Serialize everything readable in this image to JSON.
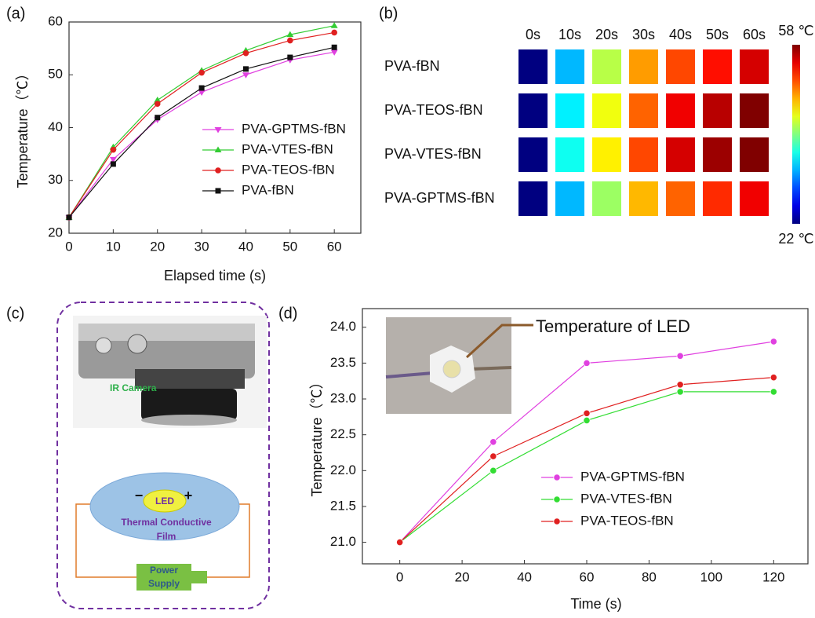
{
  "chart_data": [
    {
      "type": "line",
      "label": "(a)",
      "xlabel": "Elapsed time (s)",
      "ylabel": "Temperature（℃）",
      "x": [
        0,
        10,
        20,
        30,
        40,
        50,
        60
      ],
      "xlim": [
        0,
        66
      ],
      "xticks": [
        0,
        10,
        20,
        30,
        40,
        50,
        60
      ],
      "ylim": [
        20,
        60
      ],
      "yticks": [
        20,
        30,
        40,
        50,
        60
      ],
      "series": [
        {
          "name": "PVA-GPTMS-fBN",
          "color": "#e040e0",
          "marker": "triangle-down",
          "values": [
            23,
            34,
            41.5,
            46.7,
            50,
            52.8,
            54.3
          ]
        },
        {
          "name": "PVA-VTES-fBN",
          "color": "#33cc33",
          "marker": "triangle-up",
          "values": [
            23,
            36.3,
            45.2,
            50.8,
            54.6,
            57.6,
            59.3
          ]
        },
        {
          "name": "PVA-TEOS-fBN",
          "color": "#e02020",
          "marker": "circle",
          "values": [
            23,
            35.8,
            44.5,
            50.4,
            54.1,
            56.5,
            58
          ]
        },
        {
          "name": "PVA-fBN",
          "color": "#111111",
          "marker": "square",
          "values": [
            23,
            33.1,
            41.9,
            47.5,
            51.1,
            53.3,
            55.2
          ]
        }
      ]
    },
    {
      "type": "heatmap",
      "label": "(b)",
      "categories": [
        "0s",
        "10s",
        "20s",
        "30s",
        "40s",
        "50s",
        "60s"
      ],
      "rows": [
        "PVA-fBN",
        "PVA-TEOS-fBN",
        "PVA-VTES-fBN",
        "PVA-GPTMS-fBN"
      ],
      "values": [
        [
          22,
          33,
          42,
          48,
          51,
          53,
          55
        ],
        [
          22,
          35,
          44,
          50,
          54,
          56,
          58
        ],
        [
          22,
          36,
          45,
          51,
          55,
          57,
          58
        ],
        [
          22,
          33,
          41,
          47,
          50,
          52,
          54
        ]
      ],
      "zlim": [
        22,
        58
      ],
      "zticks": [
        {
          "value": 58,
          "label": "58 ℃"
        },
        {
          "value": 22,
          "label": "22 ℃"
        }
      ],
      "colormap": "jet"
    },
    {
      "type": "line",
      "label": "(d)",
      "xlabel": "Time (s)",
      "ylabel": "Temperature（℃）",
      "annotation": "Temperature of LED",
      "x": [
        0,
        30,
        60,
        90,
        120
      ],
      "xlim": [
        -12,
        131
      ],
      "xticks": [
        0,
        20,
        40,
        60,
        80,
        100,
        120
      ],
      "ylim": [
        20.7,
        24.26
      ],
      "yticks": [
        {
          "value": 21,
          "label": "21.0"
        },
        {
          "value": 21.5,
          "label": "21.5"
        },
        {
          "value": 22,
          "label": "22.0"
        },
        {
          "value": 22.5,
          "label": "22.5"
        },
        {
          "value": 23,
          "label": "23.0"
        },
        {
          "value": 23.5,
          "label": "23.5"
        },
        {
          "value": 24,
          "label": "24.0"
        }
      ],
      "series": [
        {
          "name": "PVA-GPTMS-fBN",
          "color": "#e040e0",
          "marker": "ball",
          "values": [
            21,
            22.4,
            23.5,
            23.6,
            23.8
          ]
        },
        {
          "name": "PVA-VTES-fBN",
          "color": "#33dd33",
          "marker": "ball",
          "values": [
            21,
            22,
            22.7,
            23.1,
            23.1
          ]
        },
        {
          "name": "PVA-TEOS-fBN",
          "color": "#e02020",
          "marker": "ball",
          "values": [
            21,
            22.2,
            22.8,
            23.2,
            23.3
          ]
        }
      ]
    }
  ],
  "diagram": {
    "label": "(c)",
    "camera": "IR Camera",
    "led": "LED",
    "minus": "−",
    "plus": "+",
    "film": [
      "Thermal Conductive",
      "Film"
    ],
    "power": [
      "Power",
      "Supply"
    ]
  }
}
